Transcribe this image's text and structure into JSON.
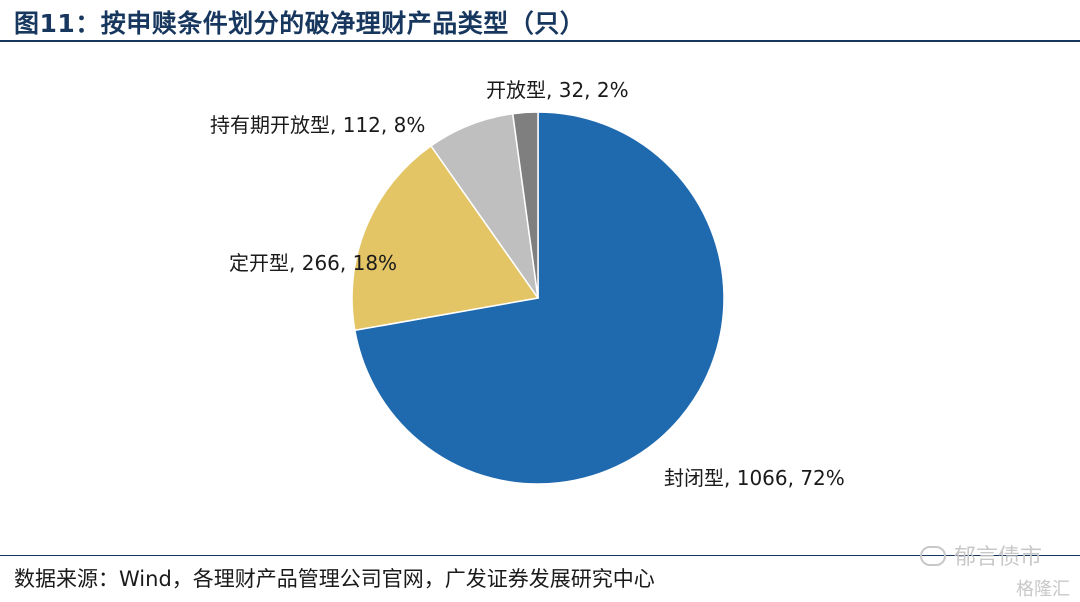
{
  "title": "图11：按申赎条件划分的破净理财产品类型（只）",
  "source": "数据来源：Wind，各理财产品管理公司官网，广发证券发展研究中心",
  "watermark": {
    "account": "郁言债市",
    "logo": "格隆汇"
  },
  "colors": {
    "accent": "#17375e"
  },
  "chart_data": {
    "type": "pie",
    "title": "按申赎条件划分的破净理财产品类型（只）",
    "slices": [
      {
        "name": "封闭型",
        "value": 1066,
        "percent": 72,
        "label": "封闭型, 1066, 72%",
        "color": "#1f6aaf"
      },
      {
        "name": "定开型",
        "value": 266,
        "percent": 18,
        "label": "定开型, 266, 18%",
        "color": "#e3c566"
      },
      {
        "name": "持有期开放型",
        "value": 112,
        "percent": 8,
        "label": "持有期开放型, 112, 8%",
        "color": "#bfbfbf"
      },
      {
        "name": "开放型",
        "value": 32,
        "percent": 2,
        "label": "开放型, 32, 2%",
        "color": "#7f7f7f"
      }
    ]
  }
}
